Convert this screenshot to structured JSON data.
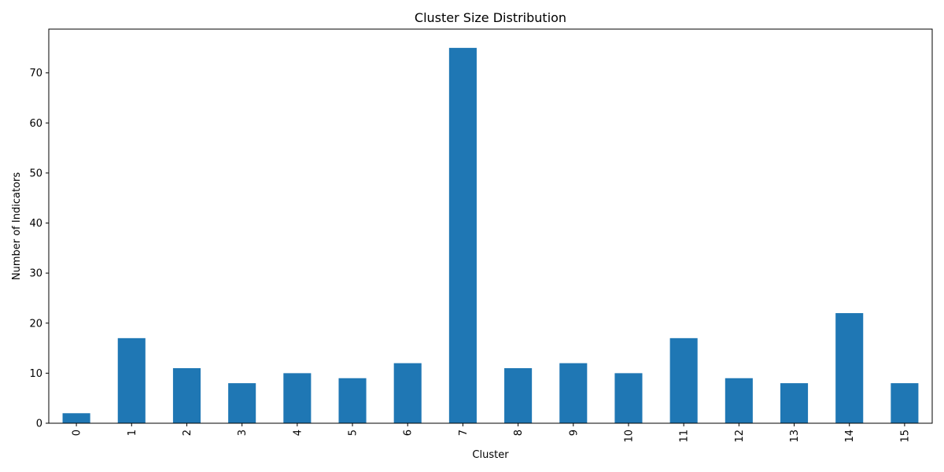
{
  "chart_data": {
    "type": "bar",
    "title": "Cluster Size Distribution",
    "xlabel": "Cluster",
    "ylabel": "Number of Indicators",
    "categories": [
      "0",
      "1",
      "2",
      "3",
      "4",
      "5",
      "6",
      "7",
      "8",
      "9",
      "10",
      "11",
      "12",
      "13",
      "14",
      "15"
    ],
    "values": [
      2,
      17,
      11,
      8,
      10,
      9,
      12,
      75,
      11,
      12,
      10,
      17,
      9,
      8,
      22,
      8
    ],
    "ylim": [
      0,
      78.75
    ],
    "yticks": [
      0,
      10,
      20,
      30,
      40,
      50,
      60,
      70
    ],
    "bar_color": "#1f77b4",
    "xtick_rotation": "vertical",
    "grid": false,
    "legend": "none"
  }
}
